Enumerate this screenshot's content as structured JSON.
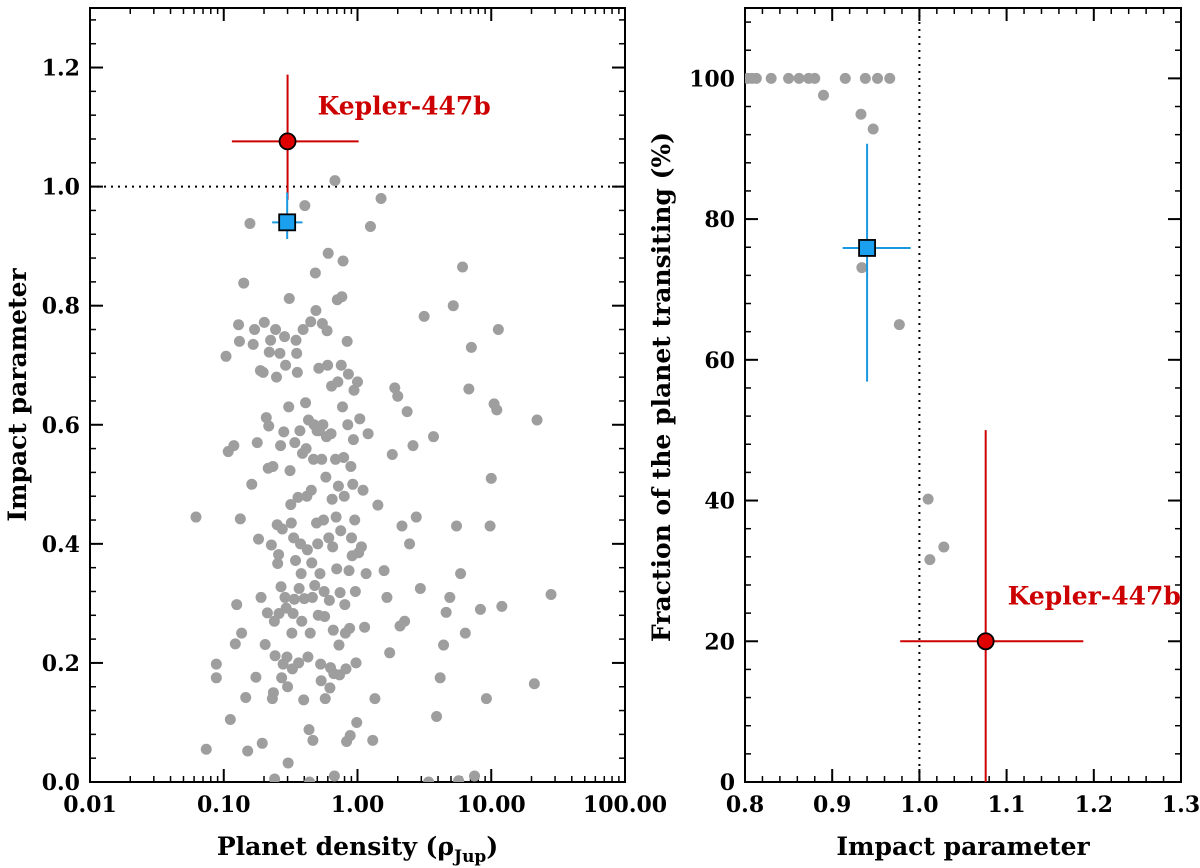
{
  "chart_data": [
    {
      "type": "scatter",
      "xscale": "log",
      "xlim": [
        0.01,
        100
      ],
      "ylim": [
        0,
        1.3
      ],
      "xlabel": "Planet density (",
      "xlabel_symbol": "ρ",
      "xlabel_subscript": "Jup",
      "xlabel_close": ")",
      "ylabel": "Impact parameter",
      "xticks": [
        0.01,
        0.1,
        1,
        10,
        100
      ],
      "xtick_labels": [
        "0.01",
        "0.10",
        "1.00",
        "10.00",
        "100.00"
      ],
      "yticks": [
        0,
        0.2,
        0.4,
        0.6,
        0.8,
        1.0,
        1.2
      ],
      "ytick_labels": [
        "0.0",
        "0.2",
        "0.4",
        "0.6",
        "0.8",
        "1.0",
        "1.2"
      ],
      "reference_line": {
        "axis": "y",
        "value": 1.0,
        "style": "dotted"
      },
      "background_points": [
        [
          0.062,
          0.445
        ],
        [
          0.074,
          0.055
        ],
        [
          0.088,
          0.198
        ],
        [
          0.088,
          0.175
        ],
        [
          0.104,
          0.715
        ],
        [
          0.108,
          0.555
        ],
        [
          0.112,
          0.105
        ],
        [
          0.119,
          0.565
        ],
        [
          0.122,
          0.232
        ],
        [
          0.125,
          0.298
        ],
        [
          0.129,
          0.768
        ],
        [
          0.131,
          0.74
        ],
        [
          0.133,
          0.442
        ],
        [
          0.136,
          0.25
        ],
        [
          0.141,
          0.838
        ],
        [
          0.146,
          0.142
        ],
        [
          0.151,
          0.052
        ],
        [
          0.157,
          0.938
        ],
        [
          0.162,
          0.5
        ],
        [
          0.166,
          0.735
        ],
        [
          0.17,
          0.76
        ],
        [
          0.174,
          0.176
        ],
        [
          0.178,
          0.57
        ],
        [
          0.182,
          0.408
        ],
        [
          0.188,
          0.691
        ],
        [
          0.19,
          0.31
        ],
        [
          0.194,
          0.065
        ],
        [
          0.197,
          0.688
        ],
        [
          0.201,
          0.772
        ],
        [
          0.204,
          0.231
        ],
        [
          0.208,
          0.612
        ],
        [
          0.212,
          0.284
        ],
        [
          0.215,
          0.527
        ],
        [
          0.217,
          0.598
        ],
        [
          0.219,
          0.722
        ],
        [
          0.224,
          0.742
        ],
        [
          0.227,
          0.398
        ],
        [
          0.231,
          0.14
        ],
        [
          0.233,
          0.53
        ],
        [
          0.235,
          0.15
        ],
        [
          0.239,
          0.27
        ],
        [
          0.242,
          0.212
        ],
        [
          0.244,
          0.76
        ],
        [
          0.248,
          0.68
        ],
        [
          0.251,
          0.432
        ],
        [
          0.253,
          0.367
        ],
        [
          0.257,
          0.382
        ],
        [
          0.259,
          0.283
        ],
        [
          0.263,
          0.72
        ],
        [
          0.266,
          0.565
        ],
        [
          0.268,
          0.328
        ],
        [
          0.271,
          0.175
        ],
        [
          0.274,
          0.425
        ],
        [
          0.278,
          0.198
        ],
        [
          0.281,
          0.588
        ],
        [
          0.285,
          0.748
        ],
        [
          0.287,
          0.31
        ],
        [
          0.29,
          0.7
        ],
        [
          0.293,
          0.292
        ],
        [
          0.297,
          0.21
        ],
        [
          0.3,
          0.16
        ],
        [
          0.303,
          0.032
        ],
        [
          0.306,
          0.63
        ],
        [
          0.309,
          0.812
        ],
        [
          0.313,
          0.523
        ],
        [
          0.317,
          0.466
        ],
        [
          0.32,
          0.435
        ],
        [
          0.323,
          0.25
        ],
        [
          0.326,
          0.19
        ],
        [
          0.33,
          0.283
        ],
        [
          0.333,
          0.41
        ],
        [
          0.337,
          0.307
        ],
        [
          0.34,
          0.57
        ],
        [
          0.344,
          0.372
        ],
        [
          0.347,
          0.742
        ],
        [
          0.351,
          0.72
        ],
        [
          0.355,
          0.688
        ],
        [
          0.359,
          0.478
        ],
        [
          0.363,
          0.2
        ],
        [
          0.366,
          0.325
        ],
        [
          0.371,
          0.59
        ],
        [
          0.375,
          0.4
        ],
        [
          0.379,
          0.35
        ],
        [
          0.383,
          0.27
        ],
        [
          0.388,
          0.552
        ],
        [
          0.392,
          0.76
        ],
        [
          0.396,
          0.138
        ],
        [
          0.4,
          0.308
        ],
        [
          0.404,
          0.968
        ],
        [
          0.409,
          0.637
        ],
        [
          0.413,
          0.56
        ],
        [
          0.418,
          0.48
        ],
        [
          0.422,
          0.39
        ],
        [
          0.426,
          0.21
        ],
        [
          0.43,
          0.608
        ],
        [
          0.434,
          0.088
        ],
        [
          0.438,
          0.0
        ],
        [
          0.443,
          0.25
        ],
        [
          0.447,
          0.773
        ],
        [
          0.451,
          0.49
        ],
        [
          0.455,
          0.368
        ],
        [
          0.46,
          0.31
        ],
        [
          0.464,
          0.07
        ],
        [
          0.469,
          0.542
        ],
        [
          0.474,
          0.6
        ],
        [
          0.479,
          0.33
        ],
        [
          0.484,
          0.855
        ],
        [
          0.489,
          0.792
        ],
        [
          0.494,
          0.435
        ],
        [
          0.499,
          0.59
        ],
        [
          0.504,
          0.4
        ],
        [
          0.509,
          0.28
        ],
        [
          0.514,
          0.695
        ],
        [
          0.519,
          0.59
        ],
        [
          0.524,
          0.35
        ],
        [
          0.53,
          0.198
        ],
        [
          0.535,
          0.17
        ],
        [
          0.54,
          0.542
        ],
        [
          0.546,
          0.77
        ],
        [
          0.551,
          0.6
        ],
        [
          0.557,
          0.44
        ],
        [
          0.563,
          0.32
        ],
        [
          0.568,
          0.278
        ],
        [
          0.574,
          0.14
        ],
        [
          0.58,
          0.512
        ],
        [
          0.586,
          0.58
        ],
        [
          0.592,
          0.758
        ],
        [
          0.598,
          0.7
        ],
        [
          0.604,
          0.888
        ],
        [
          0.61,
          0.41
        ],
        [
          0.616,
          0.305
        ],
        [
          0.622,
          0.158
        ],
        [
          0.628,
          0.192
        ],
        [
          0.634,
          0.585
        ],
        [
          0.64,
          0.665
        ],
        [
          0.646,
          0.475
        ],
        [
          0.652,
          0.395
        ],
        [
          0.659,
          0.255
        ],
        [
          0.665,
          0.182
        ],
        [
          0.672,
          0.01
        ],
        [
          0.678,
          1.01
        ],
        [
          0.685,
          0.542
        ],
        [
          0.692,
          0.445
        ],
        [
          0.699,
          0.358
        ],
        [
          0.706,
          0.81
        ],
        [
          0.713,
          0.672
        ],
        [
          0.72,
          0.497
        ],
        [
          0.727,
          0.23
        ],
        [
          0.734,
          0.18
        ],
        [
          0.741,
          0.318
        ],
        [
          0.749,
          0.422
        ],
        [
          0.756,
          0.7
        ],
        [
          0.764,
          0.815
        ],
        [
          0.772,
          0.63
        ],
        [
          0.78,
          0.875
        ],
        [
          0.788,
          0.545
        ],
        [
          0.796,
          0.48
        ],
        [
          0.804,
          0.298
        ],
        [
          0.812,
          0.25
        ],
        [
          0.82,
          0.19
        ],
        [
          0.829,
          0.068
        ],
        [
          0.837,
          0.74
        ],
        [
          0.846,
          0.6
        ],
        [
          0.855,
          0.685
        ],
        [
          0.864,
          0.355
        ],
        [
          0.873,
          0.258
        ],
        [
          0.882,
          0.078
        ],
        [
          0.892,
          0.53
        ],
        [
          0.902,
          0.41
        ],
        [
          0.912,
          0.38
        ],
        [
          0.922,
          0.5
        ],
        [
          0.932,
          0.575
        ],
        [
          0.942,
          0.658
        ],
        [
          0.953,
          0.44
        ],
        [
          0.964,
          0.32
        ],
        [
          0.975,
          0.2
        ],
        [
          0.987,
          0.1
        ],
        [
          1.0,
          0.672
        ],
        [
          1.02,
          0.385
        ],
        [
          1.04,
          0.61
        ],
        [
          1.07,
          0.395
        ],
        [
          1.1,
          0.49
        ],
        [
          1.13,
          0.26
        ],
        [
          1.16,
          0.35
        ],
        [
          1.2,
          0.585
        ],
        [
          1.25,
          0.933
        ],
        [
          1.3,
          0.07
        ],
        [
          1.35,
          0.14
        ],
        [
          1.42,
          0.465
        ],
        [
          1.5,
          0.98
        ],
        [
          1.58,
          0.355
        ],
        [
          1.66,
          0.31
        ],
        [
          1.74,
          0.217
        ],
        [
          1.82,
          0.55
        ],
        [
          1.9,
          0.662
        ],
        [
          2.0,
          0.648
        ],
        [
          2.08,
          0.262
        ],
        [
          2.15,
          0.43
        ],
        [
          2.25,
          0.27
        ],
        [
          2.35,
          0.622
        ],
        [
          2.45,
          0.4
        ],
        [
          2.6,
          0.565
        ],
        [
          2.75,
          0.445
        ],
        [
          2.95,
          0.325
        ],
        [
          3.15,
          0.782
        ],
        [
          3.4,
          0.0
        ],
        [
          3.7,
          0.58
        ],
        [
          3.9,
          0.11
        ],
        [
          4.15,
          0.175
        ],
        [
          4.4,
          0.23
        ],
        [
          4.6,
          0.285
        ],
        [
          4.9,
          0.31
        ],
        [
          5.2,
          0.8
        ],
        [
          5.5,
          0.43
        ],
        [
          5.7,
          0.002
        ],
        [
          5.9,
          0.35
        ],
        [
          6.1,
          0.865
        ],
        [
          6.4,
          0.25
        ],
        [
          6.8,
          0.66
        ],
        [
          7.1,
          0.73
        ],
        [
          7.5,
          0.01
        ],
        [
          8.3,
          0.29
        ],
        [
          9.2,
          0.14
        ],
        [
          9.8,
          0.43
        ],
        [
          10.0,
          0.51
        ],
        [
          10.5,
          0.635
        ],
        [
          11.0,
          0.625
        ],
        [
          11.3,
          0.76
        ],
        [
          12.0,
          0.295
        ],
        [
          21.0,
          0.165
        ],
        [
          22.0,
          0.608
        ],
        [
          28.0,
          0.315
        ],
        [
          0.24,
          0.005
        ]
      ],
      "highlight_points": [
        {
          "name": "Kepler-447b",
          "label": "Kepler-447b",
          "x": 0.3,
          "y": 1.076,
          "xerr": [
            0.115,
            1.02
          ],
          "yerr": [
            0.978,
            1.188
          ],
          "marker": "circle",
          "color": "#e00000",
          "errcolor": "#cc0000"
        },
        {
          "name": "blue-square",
          "label": "",
          "x": 0.298,
          "y": 0.94,
          "xerr": [
            0.23,
            0.388
          ],
          "yerr": [
            0.912,
            0.99
          ],
          "marker": "square",
          "color": "#1aa0ee",
          "errcolor": "#1a98e0"
        }
      ]
    },
    {
      "type": "scatter",
      "xlim": [
        0.8,
        1.3
      ],
      "ylim": [
        0,
        110
      ],
      "xlabel": "Impact parameter",
      "ylabel": "Fraction of the planet transiting (%)",
      "xticks": [
        0.8,
        0.9,
        1.0,
        1.1,
        1.2,
        1.3
      ],
      "xtick_labels": [
        "0.8",
        "0.9",
        "1.0",
        "1.1",
        "1.2",
        "1.3"
      ],
      "yticks": [
        0,
        20,
        40,
        60,
        80,
        100
      ],
      "ytick_labels": [
        "0",
        "20",
        "40",
        "60",
        "80",
        "100"
      ],
      "reference_line": {
        "axis": "x",
        "value": 1.0,
        "style": "dotted"
      },
      "background_points": [
        [
          0.803,
          100
        ],
        [
          0.808,
          100
        ],
        [
          0.813,
          100
        ],
        [
          0.83,
          100
        ],
        [
          0.85,
          100
        ],
        [
          0.862,
          100
        ],
        [
          0.873,
          100
        ],
        [
          0.88,
          100
        ],
        [
          0.89,
          97.6
        ],
        [
          0.915,
          100
        ],
        [
          0.933,
          94.9
        ],
        [
          0.934,
          73.1
        ],
        [
          0.938,
          100
        ],
        [
          0.947,
          92.8
        ],
        [
          0.952,
          100
        ],
        [
          0.966,
          100
        ],
        [
          0.977,
          65.0
        ],
        [
          1.01,
          40.2
        ],
        [
          1.012,
          31.6
        ],
        [
          1.028,
          33.4
        ]
      ],
      "highlight_points": [
        {
          "name": "Kepler-447b",
          "label": "Kepler-447b",
          "x": 1.076,
          "y": 20.0,
          "xerr": [
            0.978,
            1.188
          ],
          "yerr": [
            0,
            50.0
          ],
          "marker": "circle",
          "color": "#e00000",
          "errcolor": "#cc0000"
        },
        {
          "name": "blue-square",
          "label": "",
          "x": 0.94,
          "y": 75.9,
          "xerr": [
            0.912,
            0.99
          ],
          "yerr": [
            56.9,
            90.7
          ],
          "marker": "square",
          "color": "#1aa0ee",
          "errcolor": "#1a98e0"
        }
      ]
    }
  ]
}
